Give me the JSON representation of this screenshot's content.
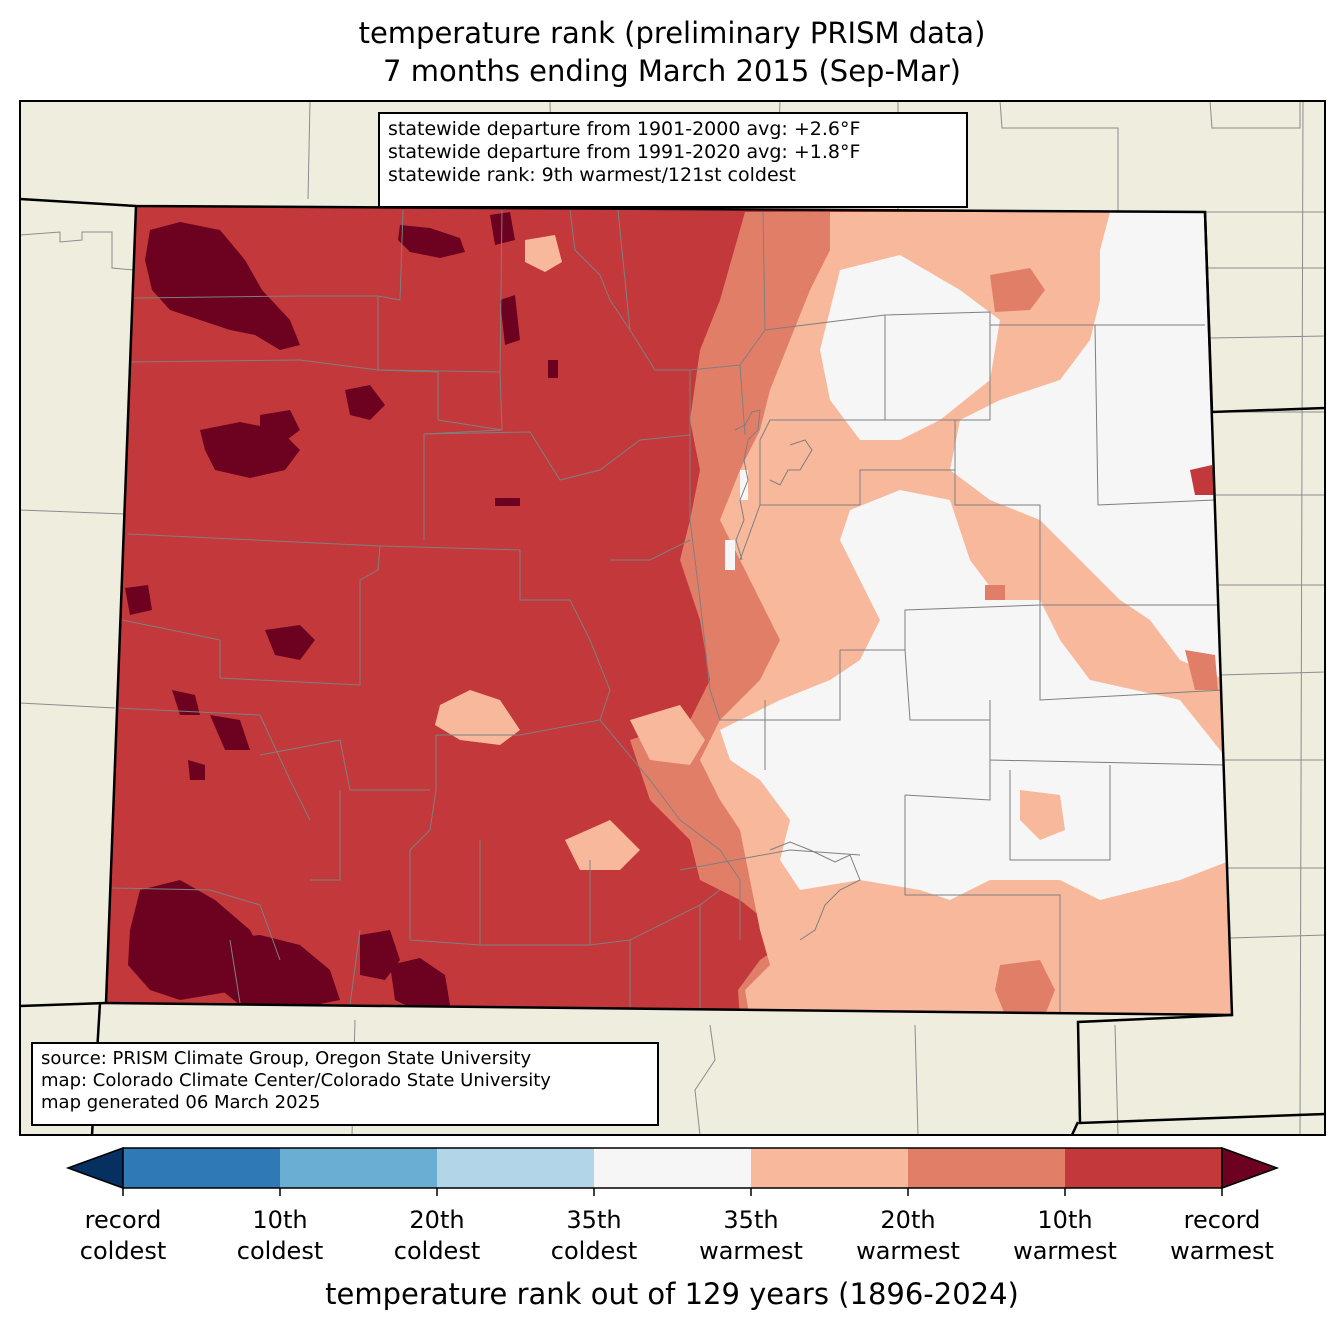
{
  "title": {
    "line1": "temperature rank (preliminary PRISM data)",
    "line2": "7 months ending March 2015 (Sep-Mar)"
  },
  "stats": {
    "line1": "statewide departure from 1901-2000 avg: +2.6°F",
    "line2": "statewide departure from 1991-2020 avg: +1.8°F",
    "line3": "statewide rank: 9th warmest/121st coldest"
  },
  "source": {
    "line1": "source: PRISM Climate Group, Oregon State University",
    "line2": "map: Colorado Climate Center/Colorado State University",
    "line3": "map generated 06 March 2025"
  },
  "colorbar": {
    "label": "temperature rank out of 129 years (1896-2024)",
    "ticks": [
      {
        "line1": "record",
        "line2": "coldest"
      },
      {
        "line1": "10th",
        "line2": "coldest"
      },
      {
        "line1": "20th",
        "line2": "coldest"
      },
      {
        "line1": "35th",
        "line2": "coldest"
      },
      {
        "line1": "35th",
        "line2": "warmest"
      },
      {
        "line1": "20th",
        "line2": "warmest"
      },
      {
        "line1": "10th",
        "line2": "warmest"
      },
      {
        "line1": "record",
        "line2": "warmest"
      }
    ],
    "colors": {
      "record_coldest": "#053061",
      "coldest_10": "#2f7ab6",
      "coldest_20": "#6aaed3",
      "coldest_35": "#b2d5e7",
      "normal": "#f6f6f6",
      "warmest_35": "#f7b89c",
      "warmest_20": "#e17e68",
      "warmest_10": "#c3383a",
      "record_warmest": "#6d0220"
    }
  },
  "map": {
    "background_color": "#efedde",
    "region": "Colorado"
  }
}
